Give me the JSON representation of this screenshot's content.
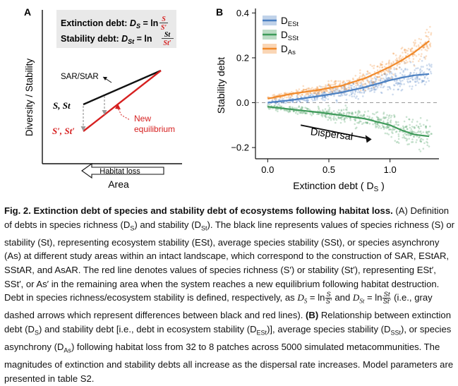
{
  "panelA": {
    "label": "A",
    "box_line1_prefix": "Extinction debt: ",
    "box_line1_formula": "D",
    "box_line1_sub": "S",
    "box_line1_eq": " = ln ",
    "box_line1_num": "S",
    "box_line1_den": "S′",
    "box_line2_prefix": "Stability debt: ",
    "box_line2_formula": "D",
    "box_line2_sub": "St",
    "box_line2_eq": " = ln ",
    "box_line2_num": "St",
    "box_line2_den": "St′",
    "ylabel": "Diversity / Stability",
    "xlabel": "Area",
    "sar_label": "SAR/StAR",
    "black_label": "S, St",
    "red_label": "S′, St′",
    "new_eq_line1": "New",
    "new_eq_line2": "equilibrium",
    "habitat_loss": "Habitat loss",
    "colors": {
      "black_line": "#111111",
      "red_line": "#d62020",
      "arrow_gray": "#9a9a9a"
    }
  },
  "panelB": {
    "label": "B",
    "chart_data": {
      "type": "scatter",
      "xlabel": "Extinction debt ( D",
      "xlabel_sub": "S",
      "xlabel_end": " )",
      "ylabel": "Stability debt",
      "xlim": [
        -0.1,
        1.4
      ],
      "ylim": [
        -0.25,
        0.42
      ],
      "x_ticks": [
        0.0,
        0.5,
        1.0
      ],
      "x_tick_labels": [
        "0.0",
        "0.5",
        "1.0"
      ],
      "y_ticks": [
        -0.2,
        0.0,
        0.2,
        0.4
      ],
      "y_tick_labels": [
        "−0.2",
        "0.0",
        "0.2",
        "0.4"
      ],
      "reference_line_y": 0.0,
      "legend_position": "top-left",
      "annotation": "Dispersal",
      "series": [
        {
          "name": "D",
          "name_sub": "ESt",
          "color": "#4a7fc1",
          "fit_x": [
            0.0,
            0.2,
            0.4,
            0.6,
            0.8,
            1.0,
            1.1,
            1.2,
            1.32
          ],
          "fit_y": [
            0.0,
            0.012,
            0.028,
            0.045,
            0.07,
            0.1,
            0.112,
            0.122,
            0.128
          ]
        },
        {
          "name": "D",
          "name_sub": "SSt",
          "color": "#3f9a5a",
          "fit_x": [
            0.0,
            0.2,
            0.4,
            0.6,
            0.8,
            1.0,
            1.1,
            1.2,
            1.32
          ],
          "fit_y": [
            -0.018,
            -0.03,
            -0.042,
            -0.056,
            -0.072,
            -0.1,
            -0.124,
            -0.142,
            -0.15
          ]
        },
        {
          "name": "D",
          "name_sub": "As",
          "color": "#f0892a",
          "fit_x": [
            0.0,
            0.2,
            0.4,
            0.6,
            0.8,
            1.0,
            1.1,
            1.2,
            1.32
          ],
          "fit_y": [
            0.018,
            0.04,
            0.055,
            0.075,
            0.11,
            0.16,
            0.19,
            0.225,
            0.275
          ]
        }
      ]
    }
  },
  "caption": {
    "title": "Fig. 2. Extinction debt of species and stability debt of ecosystems following habitat loss.",
    "p1": " (A) Definition of debts in species richness (D",
    "p1_sub1": "S",
    "p1b": ") and stability (D",
    "p1_sub2": "St",
    "p1c": "). The black line represents values of species richness (S) or stability (St), representing ecosystem stability (ESt), average species stability (SSt), or species asynchrony (As) at different study areas within an intact landscape, which correspond to the construction of SAR, EStAR, SStAR, and AsAR. The red line denotes values of species richness (S′) or stability (St′), representing ESt′, SSt′, or As′ in the remaining area when the system reaches a new equilibrium following habitat destruction. Debt in species richness/ecosystem stability is defined, respectively, as ",
    "eq1_lhs": "D",
    "eq1_sub": "S",
    "eq1_mid": " = ln",
    "eq1_num": "S",
    "eq1_den": "S′",
    "and": " and ",
    "eq2_lhs": "D",
    "eq2_sub": "St",
    "eq2_mid": " = ln",
    "eq2_num": "St",
    "eq2_den": "St′",
    "p2": " (i.e., gray dashed arrows which represent differences between black and red lines). ",
    "p2_b": "(B)",
    "p3": " Relationship between extinction debt (D",
    "p3_sub": "S",
    "p3b": ") and stability debt [i.e., debt in ecosystem stability (D",
    "p3b_sub": "ESt",
    "p3c": ")], average species stability (D",
    "p3c_sub": "SSt",
    "p3d": "), or species asynchrony (D",
    "p3d_sub": "As",
    "p3e": ") following habitat loss from 32 to 8 patches across 5000 simulated metacommunities. The magnitudes of extinction and stability debts all increase as the dispersal rate increases. Model parameters are presented in table S2."
  }
}
